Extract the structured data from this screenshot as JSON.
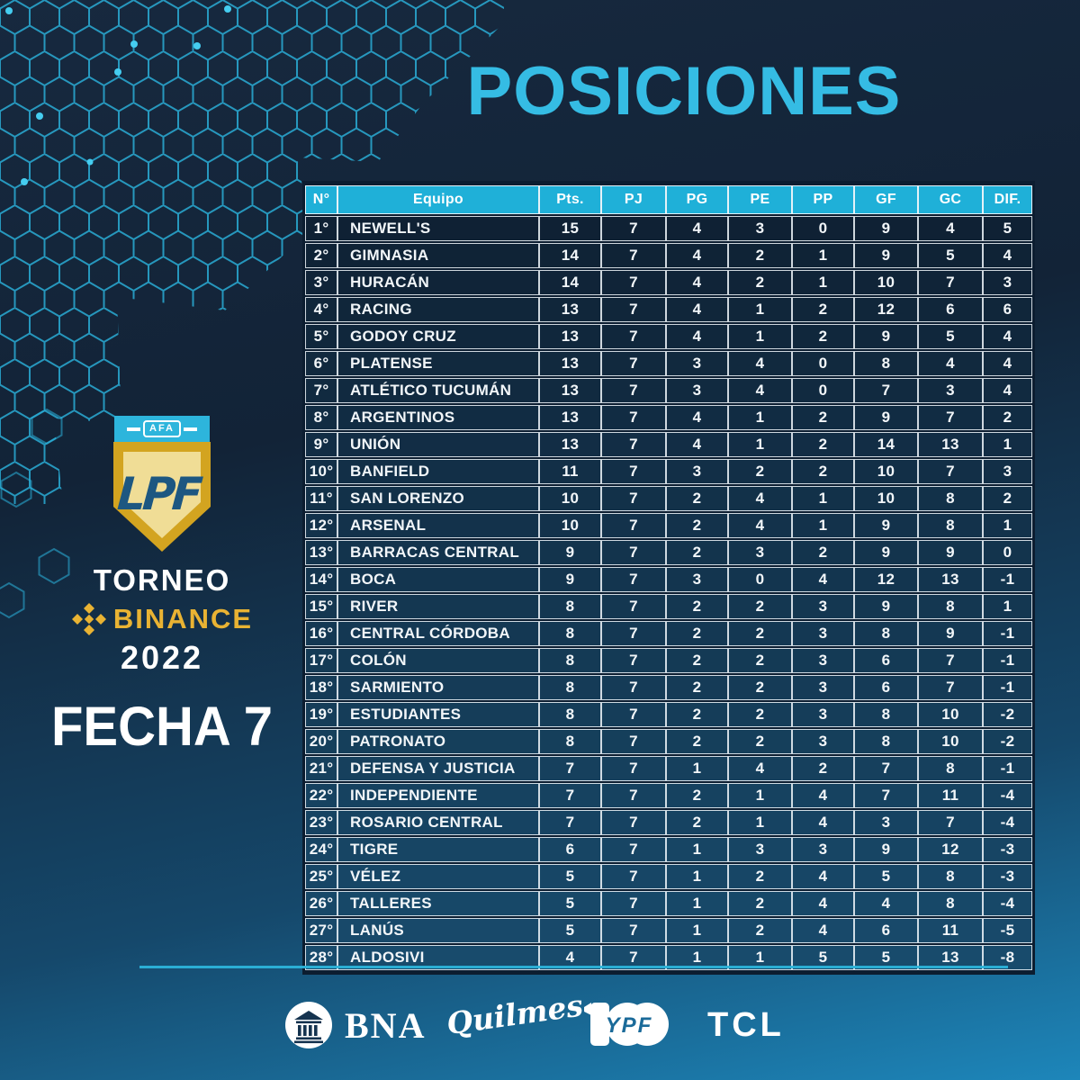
{
  "title": "POSICIONES",
  "event_badge": {
    "federation": "AFA",
    "league_monogram": "LPF",
    "tournament_line1": "TORNEO",
    "tournament_sponsor": "BINANCE",
    "year": "2022",
    "matchday": "FECHA 7"
  },
  "chart_data": {
    "type": "table",
    "title": "POSICIONES",
    "headers": [
      "N°",
      "Equipo",
      "Pts.",
      "PJ",
      "PG",
      "PE",
      "PP",
      "GF",
      "GC",
      "DIF."
    ],
    "rows": [
      [
        "1°",
        "NEWELL'S",
        15,
        7,
        4,
        3,
        0,
        9,
        4,
        5
      ],
      [
        "2°",
        "GIMNASIA",
        14,
        7,
        4,
        2,
        1,
        9,
        5,
        4
      ],
      [
        "3°",
        "HURACÁN",
        14,
        7,
        4,
        2,
        1,
        10,
        7,
        3
      ],
      [
        "4°",
        "RACING",
        13,
        7,
        4,
        1,
        2,
        12,
        6,
        6
      ],
      [
        "5°",
        "GODOY CRUZ",
        13,
        7,
        4,
        1,
        2,
        9,
        5,
        4
      ],
      [
        "6°",
        "PLATENSE",
        13,
        7,
        3,
        4,
        0,
        8,
        4,
        4
      ],
      [
        "7°",
        "ATLÉTICO TUCUMÁN",
        13,
        7,
        3,
        4,
        0,
        7,
        3,
        4
      ],
      [
        "8°",
        "ARGENTINOS",
        13,
        7,
        4,
        1,
        2,
        9,
        7,
        2
      ],
      [
        "9°",
        "UNIÓN",
        13,
        7,
        4,
        1,
        2,
        14,
        13,
        1
      ],
      [
        "10°",
        "BANFIELD",
        11,
        7,
        3,
        2,
        2,
        10,
        7,
        3
      ],
      [
        "11°",
        "SAN LORENZO",
        10,
        7,
        2,
        4,
        1,
        10,
        8,
        2
      ],
      [
        "12°",
        "ARSENAL",
        10,
        7,
        2,
        4,
        1,
        9,
        8,
        1
      ],
      [
        "13°",
        "BARRACAS CENTRAL",
        9,
        7,
        2,
        3,
        2,
        9,
        9,
        0
      ],
      [
        "14°",
        "BOCA",
        9,
        7,
        3,
        0,
        4,
        12,
        13,
        -1
      ],
      [
        "15°",
        "RIVER",
        8,
        7,
        2,
        2,
        3,
        9,
        8,
        1
      ],
      [
        "16°",
        "CENTRAL CÓRDOBA",
        8,
        7,
        2,
        2,
        3,
        8,
        9,
        -1
      ],
      [
        "17°",
        "COLÓN",
        8,
        7,
        2,
        2,
        3,
        6,
        7,
        -1
      ],
      [
        "18°",
        "SARMIENTO",
        8,
        7,
        2,
        2,
        3,
        6,
        7,
        -1
      ],
      [
        "19°",
        "ESTUDIANTES",
        8,
        7,
        2,
        2,
        3,
        8,
        10,
        -2
      ],
      [
        "20°",
        "PATRONATO",
        8,
        7,
        2,
        2,
        3,
        8,
        10,
        -2
      ],
      [
        "21°",
        "DEFENSA Y JUSTICIA",
        7,
        7,
        1,
        4,
        2,
        7,
        8,
        -1
      ],
      [
        "22°",
        "INDEPENDIENTE",
        7,
        7,
        2,
        1,
        4,
        7,
        11,
        -4
      ],
      [
        "23°",
        "ROSARIO CENTRAL",
        7,
        7,
        2,
        1,
        4,
        3,
        7,
        -4
      ],
      [
        "24°",
        "TIGRE",
        6,
        7,
        1,
        3,
        3,
        9,
        12,
        -3
      ],
      [
        "25°",
        "VÉLEZ",
        5,
        7,
        1,
        2,
        4,
        5,
        8,
        -3
      ],
      [
        "26°",
        "TALLERES",
        5,
        7,
        1,
        2,
        4,
        4,
        8,
        -4
      ],
      [
        "27°",
        "LANÚS",
        5,
        7,
        1,
        2,
        4,
        6,
        11,
        -5
      ],
      [
        "28°",
        "ALDOSIVI",
        4,
        7,
        1,
        1,
        5,
        5,
        13,
        -8
      ]
    ]
  },
  "sponsors": {
    "bna": "BNA",
    "quilmes": "Quilmes",
    "ypf": "YPF",
    "ypf_hundred": "100",
    "tcl": "TCL"
  },
  "colors": {
    "accent_cyan": "#35bce4",
    "header_cyan": "#1fb0d8",
    "binance_gold": "#e9b333",
    "shield_gold": "#d3a420",
    "shield_cream": "#f0dd96",
    "lpf_navy": "#1d5781",
    "bg_top_left": "#17293f",
    "bg_bottom_right": "#1d86ba"
  }
}
